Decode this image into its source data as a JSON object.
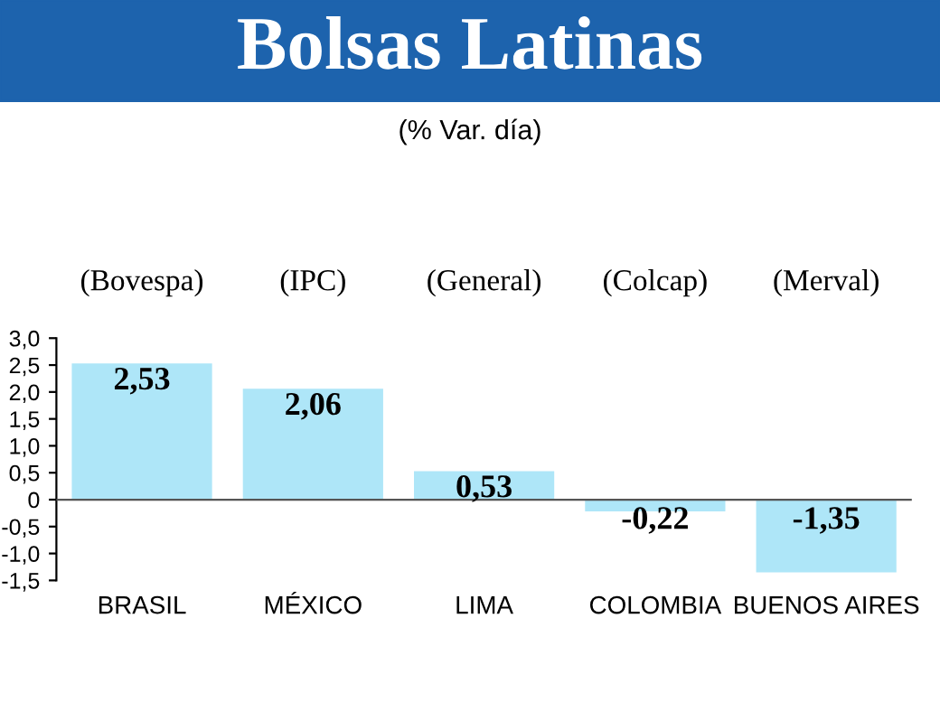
{
  "chart_data": {
    "type": "bar",
    "title": "Bolsas Latinas",
    "subtitle": "(% Var. día)",
    "categories": [
      "BRASIL",
      "MÉXICO",
      "LIMA",
      "COLOMBIA",
      "BUENOS AIRES"
    ],
    "values": [
      2.53,
      2.06,
      0.53,
      -0.22,
      -1.35
    ],
    "value_labels": [
      "2,53",
      "2,06",
      "0,53",
      "-0,22",
      "-1,35"
    ],
    "color": "#aee6f8",
    "annotations": [
      "(Bovespa)",
      "(IPC)",
      "(General)",
      "(Colcap)",
      "(Merval)"
    ],
    "ylim": [
      -1.5,
      3.0
    ],
    "yticks": [
      {
        "value": -1.5,
        "label": "-1,5"
      },
      {
        "value": -1.0,
        "label": "-1,0"
      },
      {
        "value": -0.5,
        "label": "-0,5"
      },
      {
        "value": 0,
        "label": "0"
      },
      {
        "value": 0.5,
        "label": "0,5"
      },
      {
        "value": 1.0,
        "label": "1,0"
      },
      {
        "value": 1.5,
        "label": "1,5"
      },
      {
        "value": 2.0,
        "label": "2,0"
      },
      {
        "value": 2.5,
        "label": "2,5"
      },
      {
        "value": 3.0,
        "label": "3,0"
      }
    ],
    "ref_lines": [
      {
        "axis": "y",
        "value": 0,
        "color": "#555555"
      }
    ],
    "grid": false,
    "legend": false
  }
}
